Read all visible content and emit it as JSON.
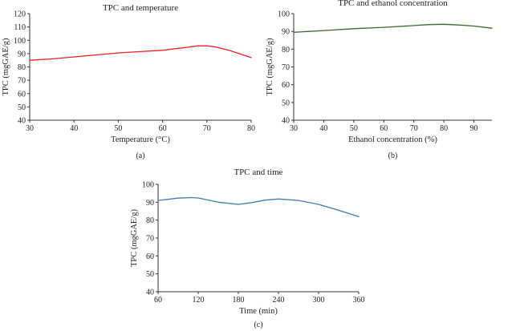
{
  "chart_data": [
    {
      "type": "line",
      "title": "TPC and temperature",
      "xlabel": "Temperature (°C)",
      "ylabel": "TPC (mgGAE/g)",
      "panel_label": "(a)",
      "xlim": [
        30,
        80
      ],
      "ylim": [
        40,
        120
      ],
      "xticks": [
        30,
        40,
        50,
        60,
        70,
        80
      ],
      "yticks": [
        40,
        50,
        60,
        70,
        80,
        90,
        100,
        110,
        120
      ],
      "color": "#e8201c",
      "series": [
        {
          "x": [
            30,
            35,
            40,
            45,
            50,
            55,
            60,
            65,
            68,
            70,
            72,
            75,
            80
          ],
          "y": [
            85,
            86,
            87.5,
            89,
            90.5,
            91.5,
            92.5,
            94.5,
            95.8,
            95.8,
            95,
            92.5,
            87
          ]
        }
      ]
    },
    {
      "type": "line",
      "title": "TPC and ethanol concentration",
      "xlabel": "Ethanol concentration (%)",
      "ylabel": "TPC (mgGAE/g)",
      "panel_label": "(b)",
      "xlim": [
        30,
        96
      ],
      "ylim": [
        40,
        100
      ],
      "xticks": [
        30,
        40,
        50,
        60,
        70,
        80,
        90
      ],
      "yticks": [
        40,
        50,
        60,
        70,
        80,
        90,
        100
      ],
      "color": "#3a6b2a",
      "series": [
        {
          "x": [
            30,
            40,
            50,
            60,
            70,
            75,
            80,
            85,
            90,
            96
          ],
          "y": [
            89.5,
            90.5,
            91.5,
            92.3,
            93.3,
            93.8,
            94,
            93.6,
            93,
            91.8
          ]
        }
      ]
    },
    {
      "type": "line",
      "title": "TPC and time",
      "xlabel": "Time (min)",
      "ylabel": "TPC (mgGAE/g)",
      "panel_label": "(c)",
      "xlim": [
        60,
        360
      ],
      "ylim": [
        40,
        100
      ],
      "xticks": [
        60,
        120,
        180,
        240,
        300,
        360
      ],
      "yticks": [
        40,
        50,
        60,
        70,
        80,
        90,
        100
      ],
      "color": "#3d7ab8",
      "series": [
        {
          "x": [
            60,
            90,
            110,
            120,
            150,
            180,
            200,
            220,
            240,
            270,
            300,
            330,
            360
          ],
          "y": [
            91,
            92.3,
            92.6,
            92.4,
            90,
            88.8,
            89.8,
            91.2,
            91.8,
            91,
            88.8,
            85.5,
            82
          ]
        }
      ]
    }
  ]
}
